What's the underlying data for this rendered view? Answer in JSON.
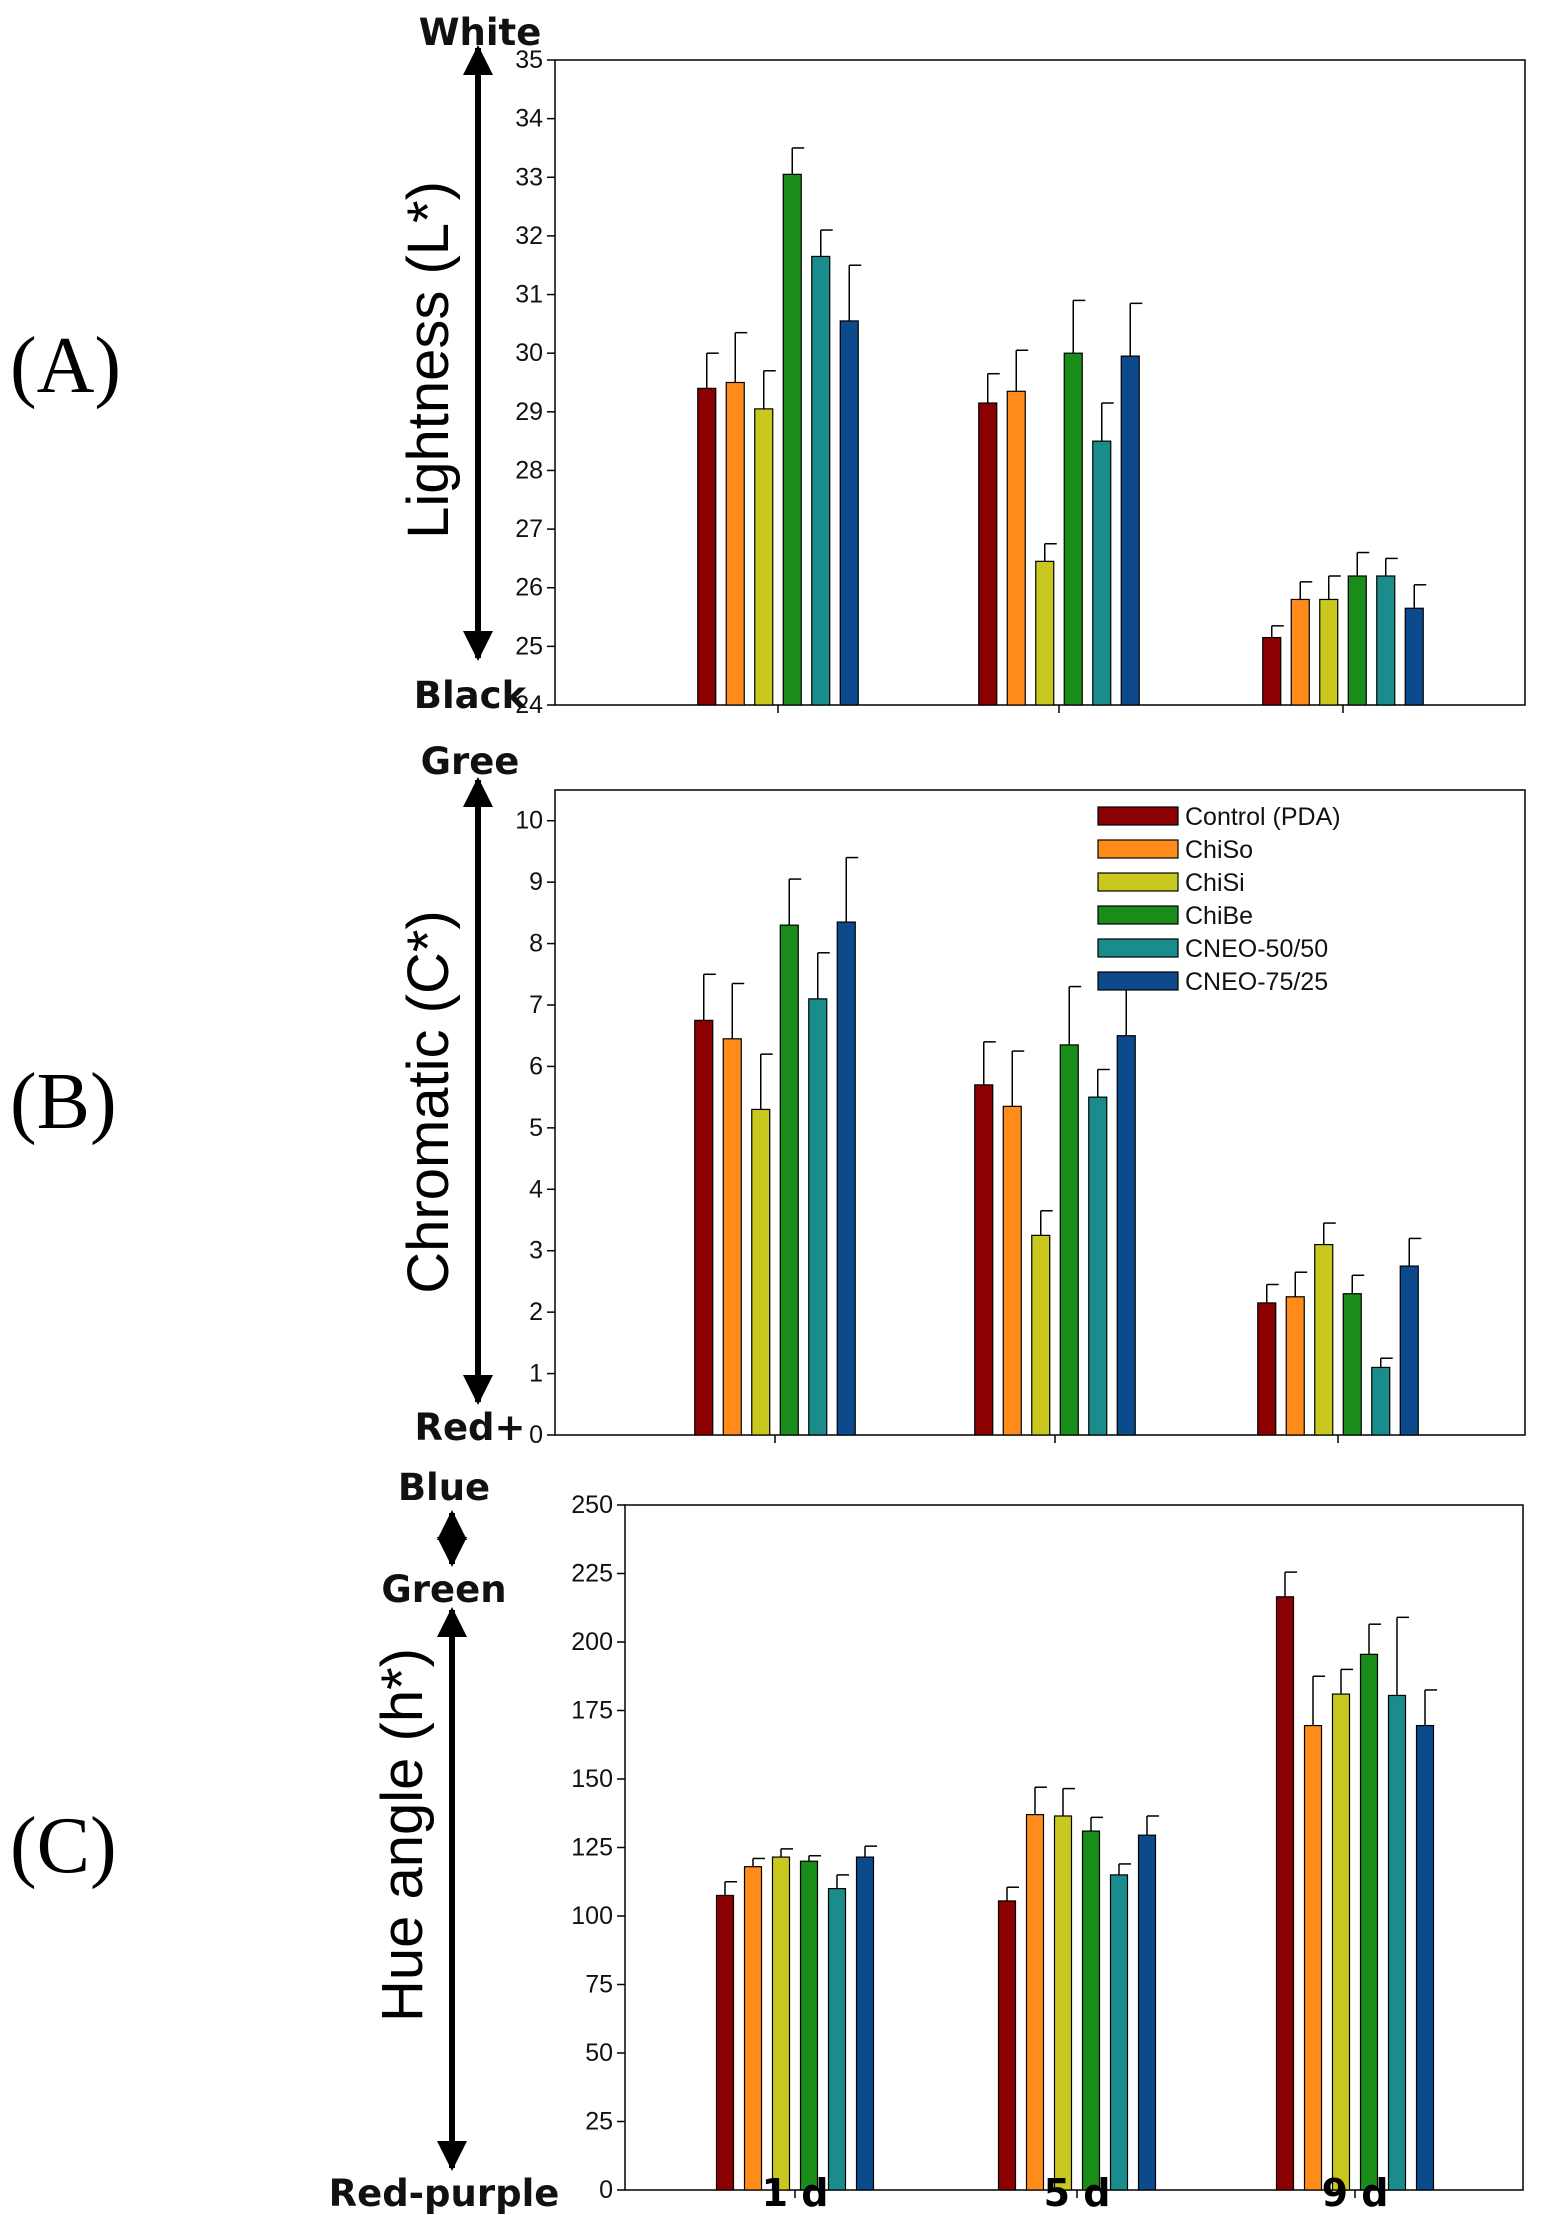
{
  "figure": {
    "categories": [
      "1 d",
      "5 d",
      "9 d"
    ]
  },
  "chart_data": [
    {
      "type": "bar",
      "panel_label": "(A)",
      "ylabel": "Lightness (L*)",
      "axis_top_label": "White",
      "axis_bottom_label": "Black",
      "ylim": [
        24,
        35
      ],
      "yticks": [
        24,
        25,
        26,
        27,
        28,
        29,
        30,
        31,
        32,
        33,
        34,
        35
      ],
      "categories": [
        "1 d",
        "5 d",
        "9 d"
      ],
      "series": [
        {
          "name": "Control (PDA)",
          "color": "#8b0000",
          "values": [
            29.4,
            29.15,
            25.15
          ],
          "errors": [
            0.6,
            0.5,
            0.2
          ]
        },
        {
          "name": "ChiSo",
          "color": "#ff8c1a",
          "values": [
            29.5,
            29.35,
            25.8
          ],
          "errors": [
            0.85,
            0.7,
            0.3
          ]
        },
        {
          "name": "ChiSi",
          "color": "#c8c81e",
          "values": [
            29.05,
            26.45,
            25.8
          ],
          "errors": [
            0.65,
            0.3,
            0.4
          ]
        },
        {
          "name": "ChiBe",
          "color": "#1a8c1a",
          "values": [
            33.05,
            30.0,
            26.2
          ],
          "errors": [
            0.45,
            0.9,
            0.4
          ]
        },
        {
          "name": "CNEO-50/50",
          "color": "#1a8c8c",
          "values": [
            31.65,
            28.5,
            26.2
          ],
          "errors": [
            0.45,
            0.65,
            0.3
          ]
        },
        {
          "name": "CNEO-75/25",
          "color": "#0c4a8c",
          "values": [
            30.55,
            29.95,
            25.65
          ],
          "errors": [
            0.95,
            0.9,
            0.4
          ]
        }
      ]
    },
    {
      "type": "bar",
      "panel_label": "(B)",
      "ylabel": "Chromatic (C*)",
      "axis_top_label": "Gree",
      "axis_bottom_label": "Red+",
      "ylim": [
        0,
        10.5
      ],
      "yticks": [
        0,
        1,
        2,
        3,
        4,
        5,
        6,
        7,
        8,
        9,
        10
      ],
      "categories": [
        "1 d",
        "5 d",
        "9 d"
      ],
      "legend": [
        "Control (PDA)",
        "ChiSo",
        "ChiSi",
        "ChiBe",
        "CNEO-50/50",
        "CNEO-75/25"
      ],
      "series": [
        {
          "name": "Control (PDA)",
          "color": "#8b0000",
          "values": [
            6.75,
            5.7,
            2.15
          ],
          "errors": [
            0.75,
            0.7,
            0.3
          ]
        },
        {
          "name": "ChiSo",
          "color": "#ff8c1a",
          "values": [
            6.45,
            5.35,
            2.25
          ],
          "errors": [
            0.9,
            0.9,
            0.4
          ]
        },
        {
          "name": "ChiSi",
          "color": "#c8c81e",
          "values": [
            5.3,
            3.25,
            3.1
          ],
          "errors": [
            0.9,
            0.4,
            0.35
          ]
        },
        {
          "name": "ChiBe",
          "color": "#1a8c1a",
          "values": [
            8.3,
            6.35,
            2.3
          ],
          "errors": [
            0.75,
            0.95,
            0.3
          ]
        },
        {
          "name": "CNEO-50/50",
          "color": "#1a8c8c",
          "values": [
            7.1,
            5.5,
            1.1
          ],
          "errors": [
            0.75,
            0.45,
            0.15
          ]
        },
        {
          "name": "CNEO-75/25",
          "color": "#0c4a8c",
          "values": [
            8.35,
            6.5,
            2.75
          ],
          "errors": [
            1.05,
            0.8,
            0.45
          ]
        }
      ]
    },
    {
      "type": "bar",
      "panel_label": "(C)",
      "ylabel": "Hue angle (h*)",
      "axis_top_label": "Blue",
      "axis_mid_label": "Green",
      "axis_bottom_label": "Red-purple",
      "ylim": [
        0,
        250
      ],
      "yticks": [
        0,
        25,
        50,
        75,
        100,
        125,
        150,
        175,
        200,
        225,
        250
      ],
      "categories": [
        "1 d",
        "5 d",
        "9 d"
      ],
      "series": [
        {
          "name": "Control (PDA)",
          "color": "#8b0000",
          "values": [
            107.5,
            105.5,
            216.5
          ],
          "errors": [
            5,
            5,
            9
          ]
        },
        {
          "name": "ChiSo",
          "color": "#ff8c1a",
          "values": [
            118,
            137,
            169.5
          ],
          "errors": [
            3,
            10,
            18
          ]
        },
        {
          "name": "ChiSi",
          "color": "#c8c81e",
          "values": [
            121.5,
            136.5,
            181
          ],
          "errors": [
            3,
            10,
            9
          ]
        },
        {
          "name": "ChiBe",
          "color": "#1a8c1a",
          "values": [
            120,
            131,
            195.5
          ],
          "errors": [
            2,
            5,
            11
          ]
        },
        {
          "name": "CNEO-50/50",
          "color": "#1a8c8c",
          "values": [
            110,
            115,
            180.5
          ],
          "errors": [
            5,
            4,
            28.5
          ]
        },
        {
          "name": "CNEO-75/25",
          "color": "#0c4a8c",
          "values": [
            121.5,
            129.5,
            169.5
          ],
          "errors": [
            4,
            7,
            13
          ]
        }
      ]
    }
  ]
}
